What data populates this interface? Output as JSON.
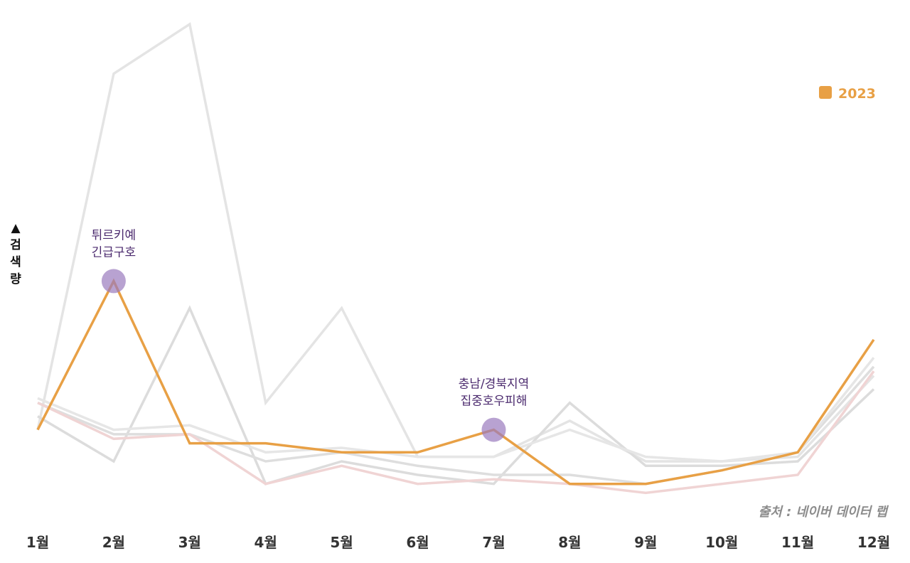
{
  "chart_data": {
    "type": "line",
    "categories": [
      "1월",
      "2월",
      "3월",
      "4월",
      "5월",
      "6월",
      "7월",
      "8월",
      "9월",
      "10월",
      "11월",
      "12월"
    ],
    "ylabel": "검색량",
    "ylim": [
      0,
      100
    ],
    "grid": false,
    "legend_position": "top-right",
    "series": [
      {
        "name": "",
        "color": "#e4e4e4",
        "values": [
          10,
          89,
          100,
          16,
          37,
          4,
          4,
          12,
          3,
          3,
          4,
          22
        ]
      },
      {
        "name": "",
        "color": "#dcdcdc",
        "values": [
          13,
          3,
          37,
          -2,
          3,
          0,
          -2,
          16,
          2,
          2,
          3,
          19
        ]
      },
      {
        "name": "",
        "color": "#dedede",
        "values": [
          16,
          9,
          9,
          3,
          5,
          2,
          0,
          0,
          -2,
          1,
          5,
          24
        ]
      },
      {
        "name": "",
        "color": "#e6e6e6",
        "values": [
          17,
          10,
          11,
          5,
          6,
          4,
          4,
          10,
          4,
          3,
          5,
          26
        ]
      },
      {
        "name": "",
        "color": "#f0d4d4",
        "values": [
          16,
          8,
          9,
          -2,
          2,
          -2,
          -1,
          -2,
          -4,
          -2,
          0,
          23
        ]
      },
      {
        "name": "2023",
        "color": "#e8a045",
        "highlight": true,
        "values": [
          10,
          43,
          7,
          7,
          5,
          5,
          10,
          -2,
          -2,
          1,
          5,
          30
        ]
      }
    ],
    "annotations": [
      {
        "category": "2월",
        "value": 43,
        "lines": [
          "튀르키예",
          "긴급구호"
        ]
      },
      {
        "category": "7월",
        "value": 10,
        "lines": [
          "충남/경북지역",
          "집중호우피해"
        ]
      }
    ],
    "source": "출처 : 네이버 데이터 랩"
  },
  "colors": {
    "highlight": "#e8a045",
    "marker": "#9a7bbd",
    "annotation_text": "#4b2a6e",
    "axis_text": "#333333",
    "source_text": "#8c8c8c"
  },
  "axis_marker": "▲"
}
